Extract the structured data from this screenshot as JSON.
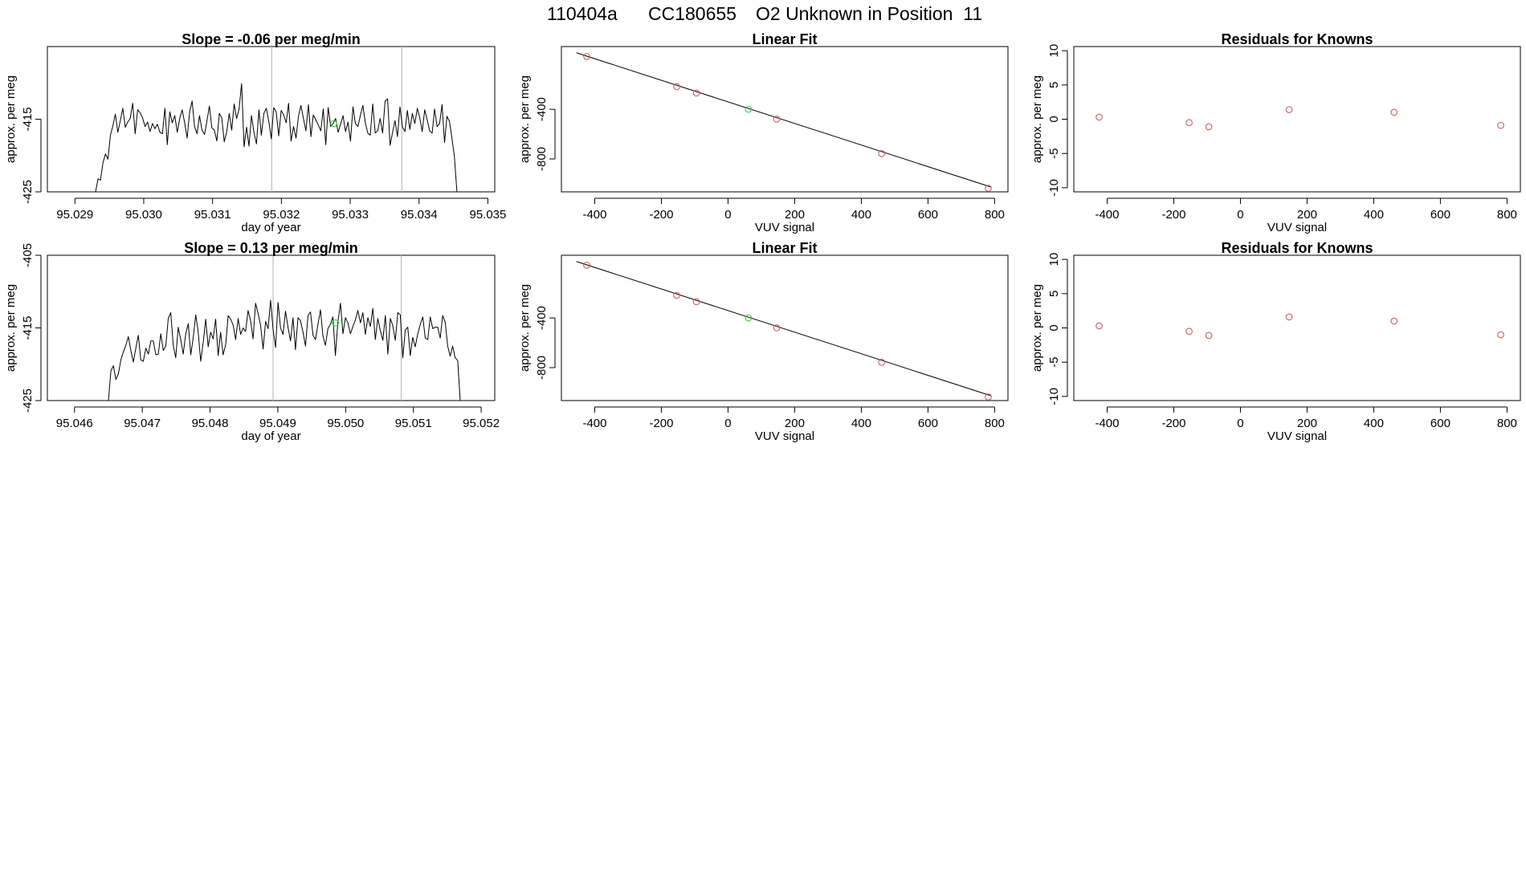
{
  "header": {
    "run_id": "110404a",
    "cylinder": "CC180655",
    "description": "O2 Unknown in Position  11"
  },
  "colors": {
    "trace": "#000000",
    "vline": "#bebebe",
    "known_point": "#cd5c5c",
    "unknown_point": "#33cc33",
    "axis": "#000000"
  },
  "chart_data": [
    {
      "type": "line",
      "title": "Slope =  -0.06  per meg/min",
      "xlabel": "day of year",
      "ylabel": "approx. per meg",
      "xlim": [
        95.0286,
        95.0351
      ],
      "ylim": [
        -425,
        -405
      ],
      "xticks": [
        "95.029",
        "95.030",
        "95.031",
        "95.032",
        "95.033",
        "95.034",
        "95.035"
      ],
      "yticks": [
        "-425",
        "-415"
      ],
      "vlines": [
        95.03186,
        95.03375
      ],
      "series": [
        {
          "x_start": 95.0293,
          "x_end": 95.03455,
          "edge_tail": 0.0001,
          "values": [
            -425,
            -423.2,
            -423.4,
            -421,
            -419.8,
            -420.5,
            -417.2,
            -415.9,
            -414.3,
            -416.8,
            -415.2,
            -413.5,
            -416.1,
            -415.4,
            -414.9,
            -412.8,
            -417,
            -413.7,
            -414.1,
            -414.8,
            -416,
            -415.4,
            -416.7,
            -415.6,
            -416.3,
            -415.7,
            -416.8,
            -417,
            -413.5,
            -418.5,
            -414,
            -415.5,
            -414.5,
            -416.8,
            -414.9,
            -413.7,
            -415.5,
            -417.6,
            -414,
            -412.5,
            -416,
            -417,
            -414.5,
            -416.5,
            -417.1,
            -415.3,
            -413.2,
            -416.2,
            -416.5,
            -418,
            -414.2,
            -414.8,
            -418.1,
            -416.7,
            -414.2,
            -416.5,
            -412.9,
            -414.9,
            -413.6,
            -410.1,
            -418.8,
            -416.1,
            -418.7,
            -414.5,
            -416.8,
            -418.4,
            -413.7,
            -417.2,
            -414.2,
            -413.5,
            -415.3,
            -417.7,
            -413.4,
            -414,
            -417.3,
            -413.8,
            -414.4,
            -415.5,
            -412.8,
            -418,
            -416,
            -417.6,
            -414.5,
            -413.1,
            -414.9,
            -416.6,
            -413,
            -417.4,
            -414.4,
            -415.1,
            -415.8,
            -416.6,
            -413.6,
            -418.5,
            -413.4,
            -416,
            -415.6,
            -414.9,
            -416.8,
            -415.7,
            -414.5,
            -416.7,
            -415.4,
            -418,
            -413.3,
            -415.6,
            -416,
            -414.5,
            -413.1,
            -415.5,
            -416.9,
            -417.2,
            -412.9,
            -416.9,
            -416.6,
            -414.9,
            -416.9,
            -412.5,
            -412.2,
            -418.6,
            -416.8,
            -415.2,
            -417.4,
            -413.3,
            -416.1,
            -416.7,
            -413.8,
            -416.4,
            -414.2,
            -415.6,
            -413.5,
            -414.8,
            -416.7,
            -413.7,
            -415.1,
            -416.6,
            -416.9,
            -413.6,
            -416,
            -415.6,
            -413,
            -418.2,
            -414.6,
            -415.3,
            -417.6,
            -420.2,
            -425
          ]
        }
      ],
      "points": [
        {
          "x": 95.03276,
          "y": -415.6,
          "kind": "unknown"
        }
      ]
    },
    {
      "type": "scatter",
      "title": "Linear Fit",
      "xlabel": "VUV signal",
      "ylabel": "approx. per meg",
      "xlim": [
        -500,
        840
      ],
      "ylim": [
        -1065,
        105
      ],
      "xticks": [
        "-400",
        "-200",
        "0",
        "200",
        "400",
        "600",
        "800"
      ],
      "yticks": [
        "-800",
        "-400"
      ],
      "fit_line": {
        "x": [
          -455,
          790
        ],
        "y": [
          55,
          -1027
        ]
      },
      "points": [
        {
          "x": -424,
          "y": 24.7,
          "kind": "known"
        },
        {
          "x": -154,
          "y": -217.9,
          "kind": "known"
        },
        {
          "x": -95,
          "y": -269.6,
          "kind": "known"
        },
        {
          "x": 61,
          "y": -399.6,
          "kind": "unknown"
        },
        {
          "x": 146,
          "y": -479.3,
          "kind": "known"
        },
        {
          "x": 461,
          "y": -756.6,
          "kind": "known"
        },
        {
          "x": 781,
          "y": -1036.2,
          "kind": "known"
        }
      ]
    },
    {
      "type": "scatter",
      "title": "Residuals for Knowns",
      "xlabel": "VUV signal",
      "ylabel": "approx. per meg",
      "xlim": [
        -500,
        840
      ],
      "ylim": [
        -10.6,
        10.6
      ],
      "xticks": [
        "-400",
        "-200",
        "0",
        "200",
        "400",
        "600",
        "800"
      ],
      "yticks": [
        "-10",
        "-5",
        "0",
        "5",
        "10"
      ],
      "points": [
        {
          "x": -424,
          "y": 0.3,
          "kind": "known"
        },
        {
          "x": -154,
          "y": -0.5,
          "kind": "known"
        },
        {
          "x": -95,
          "y": -1.1,
          "kind": "known"
        },
        {
          "x": 146,
          "y": 1.4,
          "kind": "known"
        },
        {
          "x": 461,
          "y": 1.0,
          "kind": "known"
        },
        {
          "x": 781,
          "y": -0.9,
          "kind": "known"
        }
      ]
    },
    {
      "type": "line",
      "title": "Slope =  0.13  per meg/min",
      "xlabel": "day of year",
      "ylabel": "approx. per meg",
      "xlim": [
        95.0456,
        95.0522
      ],
      "ylim": [
        -425,
        -405
      ],
      "xticks": [
        "95.046",
        "95.047",
        "95.048",
        "95.049",
        "95.050",
        "95.051",
        "95.052"
      ],
      "yticks": [
        "-425",
        "-415",
        "-405"
      ],
      "vlines": [
        95.04893,
        95.05082
      ],
      "series": [
        {
          "x_start": 95.0465,
          "x_end": 95.05169,
          "edge_tail": 0.0001,
          "values": [
            -425,
            -420.9,
            -420.2,
            -422.1,
            -421.3,
            -419.4,
            -418.3,
            -417.4,
            -416.2,
            -418.1,
            -419.7,
            -417.8,
            -416,
            -419.4,
            -419.6,
            -417.8,
            -418.6,
            -416.8,
            -416.8,
            -418.7,
            -418.6,
            -415.8,
            -418.1,
            -417.5,
            -413.7,
            -412.9,
            -417.4,
            -419.1,
            -414.9,
            -416.6,
            -418.6,
            -415.8,
            -414.4,
            -418.7,
            -416.3,
            -413.2,
            -415.6,
            -419.6,
            -417,
            -413.8,
            -417.6,
            -415.6,
            -416.5,
            -413.8,
            -418.8,
            -415.6,
            -418.7,
            -417.3,
            -413.3,
            -413.8,
            -414.6,
            -416.6,
            -413.7,
            -415.9,
            -415,
            -415.5,
            -412.6,
            -414,
            -416.5,
            -411.6,
            -413,
            -414.6,
            -417.9,
            -414.1,
            -415.1,
            -411.2,
            -415.2,
            -417.7,
            -411.5,
            -415,
            -415.9,
            -412.7,
            -414.9,
            -416.8,
            -413.6,
            -418,
            -413.6,
            -414,
            -415.6,
            -417.5,
            -413.3,
            -412.8,
            -416,
            -416.6,
            -414.5,
            -412.5,
            -416.1,
            -417.4,
            -415.1,
            -414.5,
            -413.5,
            -418.8,
            -414.2,
            -411.6,
            -415.8,
            -413.6,
            -414.3,
            -415.8,
            -414.8,
            -413.9,
            -412.6,
            -414.3,
            -412.9,
            -415.9,
            -413.6,
            -414.8,
            -412.3,
            -416.6,
            -413.7,
            -415.4,
            -416.7,
            -413.3,
            -418.6,
            -413.7,
            -414.7,
            -416.7,
            -412.9,
            -413.2,
            -419.1,
            -415.3,
            -414.9,
            -418.8,
            -416.3,
            -417.6,
            -415.8,
            -414.5,
            -413.5,
            -416.4,
            -416.6,
            -413.5,
            -415.1,
            -414.9,
            -414.9,
            -416.4,
            -413.3,
            -414.2,
            -417.5,
            -418.9,
            -417.5,
            -419.1,
            -419.5,
            -425
          ]
        }
      ],
      "points": [
        {
          "x": 95.04985,
          "y": -414.3,
          "kind": "unknown"
        }
      ]
    },
    {
      "type": "scatter",
      "title": "Linear Fit",
      "xlabel": "VUV signal",
      "ylabel": "approx. per meg",
      "xlim": [
        -500,
        840
      ],
      "ylim": [
        -1065,
        105
      ],
      "xticks": [
        "-400",
        "-200",
        "0",
        "200",
        "400",
        "600",
        "800"
      ],
      "yticks": [
        "-800",
        "-400"
      ],
      "fit_line": {
        "x": [
          -455,
          790
        ],
        "y": [
          55,
          -1027
        ]
      },
      "points": [
        {
          "x": -424,
          "y": 24.7,
          "kind": "known"
        },
        {
          "x": -154,
          "y": -217.9,
          "kind": "known"
        },
        {
          "x": -95,
          "y": -269.6,
          "kind": "known"
        },
        {
          "x": 61,
          "y": -399.6,
          "kind": "unknown"
        },
        {
          "x": 146,
          "y": -479.3,
          "kind": "known"
        },
        {
          "x": 461,
          "y": -756.6,
          "kind": "known"
        },
        {
          "x": 781,
          "y": -1036.2,
          "kind": "known"
        }
      ]
    },
    {
      "type": "scatter",
      "title": "Residuals for Knowns",
      "xlabel": "VUV signal",
      "ylabel": "approx. per meg",
      "xlim": [
        -500,
        840
      ],
      "ylim": [
        -10.6,
        10.6
      ],
      "xticks": [
        "-400",
        "-200",
        "0",
        "200",
        "400",
        "600",
        "800"
      ],
      "yticks": [
        "-10",
        "-5",
        "0",
        "5",
        "10"
      ],
      "points": [
        {
          "x": -424,
          "y": 0.3,
          "kind": "known"
        },
        {
          "x": -154,
          "y": -0.5,
          "kind": "known"
        },
        {
          "x": -95,
          "y": -1.1,
          "kind": "known"
        },
        {
          "x": 146,
          "y": 1.6,
          "kind": "known"
        },
        {
          "x": 461,
          "y": 1.0,
          "kind": "known"
        },
        {
          "x": 781,
          "y": -1.0,
          "kind": "known"
        }
      ]
    }
  ]
}
